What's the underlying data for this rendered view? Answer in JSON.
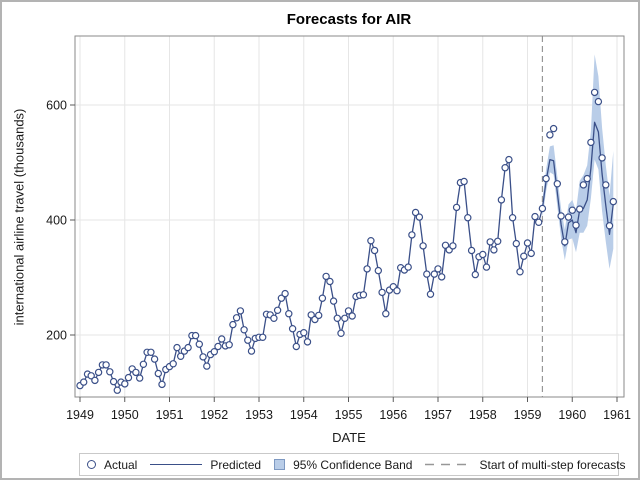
{
  "chart_data": {
    "type": "line",
    "title": "Forecasts for AIR",
    "xlabel": "DATE",
    "ylabel": "international airline travel (thousands)",
    "x_ticks": [
      1949,
      1950,
      1951,
      1952,
      1953,
      1954,
      1955,
      1956,
      1957,
      1958,
      1959,
      1960,
      1961
    ],
    "y_ticks": [
      200,
      400,
      600
    ],
    "x_range": [
      1948.89,
      1961.17
    ],
    "y_range": [
      90,
      725
    ],
    "grid": true,
    "start_year": 1949,
    "series_name_actual": "Actual",
    "series_name_predicted": "Predicted",
    "actual_monthly": [
      112,
      118,
      132,
      129,
      121,
      135,
      148,
      148,
      136,
      119,
      104,
      118,
      115,
      126,
      141,
      135,
      125,
      149,
      170,
      170,
      158,
      133,
      114,
      140,
      145,
      150,
      178,
      163,
      172,
      178,
      199,
      199,
      184,
      162,
      146,
      166,
      171,
      180,
      193,
      181,
      183,
      218,
      230,
      242,
      209,
      191,
      172,
      194,
      196,
      196,
      236,
      235,
      229,
      243,
      264,
      272,
      237,
      211,
      180,
      201,
      204,
      188,
      235,
      227,
      234,
      264,
      302,
      293,
      259,
      229,
      203,
      229,
      242,
      233,
      267,
      269,
      270,
      315,
      364,
      347,
      312,
      274,
      237,
      278,
      284,
      277,
      317,
      313,
      318,
      374,
      413,
      405,
      355,
      306,
      271,
      306,
      315,
      301,
      356,
      348,
      355,
      422,
      465,
      467,
      404,
      347,
      305,
      336,
      340,
      318,
      362,
      348,
      363,
      435,
      491,
      505,
      404,
      359,
      310,
      337,
      360,
      342,
      406,
      396,
      420,
      472,
      548,
      559,
      463,
      407,
      362,
      405,
      417,
      391,
      419,
      461,
      472,
      535,
      622,
      606,
      508,
      461,
      390,
      432
    ],
    "forecast": {
      "start_index": 124,
      "start_time": 1959.3333,
      "values": [
        420,
        468,
        505,
        503,
        448,
        392,
        355,
        395,
        400,
        378,
        418,
        420,
        435,
        490,
        570,
        553,
        480,
        425,
        375,
        428
      ],
      "lower": [
        404,
        450,
        483,
        479,
        424,
        368,
        330,
        366,
        368,
        344,
        378,
        378,
        390,
        438,
        505,
        488,
        415,
        362,
        315,
        350
      ],
      "upper": [
        436,
        488,
        528,
        530,
        476,
        420,
        383,
        427,
        435,
        416,
        468,
        478,
        495,
        555,
        688,
        650,
        560,
        495,
        442,
        520
      ]
    }
  },
  "legend": {
    "items": [
      {
        "label": "Actual",
        "swatch": "circle-marker"
      },
      {
        "label": "Predicted",
        "swatch": "solid-line"
      },
      {
        "label": "95% Confidence Band",
        "swatch": "band-square"
      },
      {
        "label": "Start of multi-step forecasts",
        "swatch": "dashed-line"
      }
    ]
  },
  "colors": {
    "series": "#3a4f88",
    "band": "#b9cde8",
    "band_border": "#7e99c2",
    "refline": "#979797",
    "grid": "#e6e6e6",
    "frame": "#8a8a8a",
    "tick": "#5a5a5a",
    "text": "#1a1a1a"
  }
}
